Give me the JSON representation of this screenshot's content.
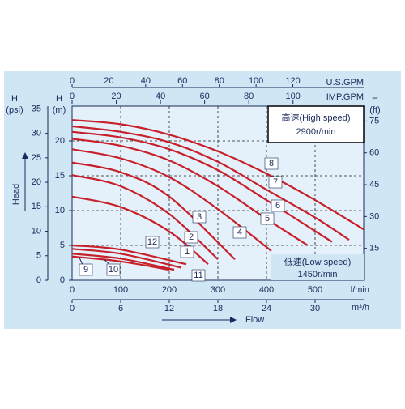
{
  "chart_data": {
    "type": "line",
    "xlabel": "Flow",
    "ylabel": "Head",
    "xlim": [
      0,
      600
    ],
    "xticks": [
      0,
      100,
      200,
      300,
      400,
      500
    ],
    "xunit": "l/min",
    "ylim": [
      0,
      25
    ],
    "yticks": [
      0,
      5,
      10,
      15,
      20
    ],
    "ytitle": "H",
    "yunit": "(m)",
    "y2lim": [
      0,
      82.02
    ],
    "y2ticks": [
      15,
      30,
      45,
      60,
      75
    ],
    "y2title": "H",
    "y2unit": "(ft)",
    "psi_axis": {
      "title": "H",
      "unit": "(psi)",
      "lim": [
        0,
        35.56
      ],
      "ticks": [
        0,
        5,
        10,
        15,
        20,
        25,
        30,
        35
      ]
    },
    "usgpm_axis": {
      "label": "U.S.GPM",
      "lim": [
        0,
        158.5
      ],
      "ticks": [
        0,
        20,
        40,
        60,
        80,
        100,
        120
      ]
    },
    "impgpm_axis": {
      "label": "IMP.GPM",
      "lim": [
        0,
        132
      ],
      "ticks": [
        0,
        20,
        40,
        60,
        80,
        100
      ]
    },
    "m3h_axis": {
      "label": "m³/h",
      "lim": [
        0,
        36
      ],
      "ticks": [
        0,
        6,
        12,
        18,
        24,
        30
      ]
    },
    "high_speed": {
      "label": "高速(High speed)",
      "rpm": "2900r/min"
    },
    "low_speed": {
      "label": "低速(Low speed)",
      "rpm": "1450r/min"
    },
    "series": [
      {
        "name": "1",
        "color": "#c8202a",
        "x": [
          0,
          100,
          200,
          280
        ],
        "values": [
          12,
          10.5,
          7,
          2.3
        ]
      },
      {
        "name": "2",
        "color": "#c8202a",
        "x": [
          0,
          100,
          200,
          300
        ],
        "values": [
          15.1,
          13.5,
          9.5,
          3
        ]
      },
      {
        "name": "3",
        "color": "#c8202a",
        "x": [
          0,
          100,
          200,
          335
        ],
        "values": [
          16.9,
          15.5,
          12,
          3
        ]
      },
      {
        "name": "4",
        "color": "#c8202a",
        "x": [
          0,
          100,
          200,
          300,
          410
        ],
        "values": [
          18.8,
          17.5,
          14.8,
          10.2,
          4.2
        ]
      },
      {
        "name": "5",
        "color": "#c8202a",
        "x": [
          0,
          100,
          200,
          300,
          400,
          485
        ],
        "values": [
          20.3,
          19.3,
          17.2,
          13.5,
          8.8,
          5
        ]
      },
      {
        "name": "6",
        "color": "#c8202a",
        "x": [
          0,
          100,
          200,
          300,
          400,
          535
        ],
        "values": [
          21.3,
          20.5,
          18.8,
          15.8,
          11.5,
          5.5
        ]
      },
      {
        "name": "7",
        "color": "#c8202a",
        "x": [
          0,
          100,
          200,
          300,
          400,
          500,
          570
        ],
        "values": [
          22.1,
          21.3,
          19.8,
          17,
          13,
          9,
          5.8
        ]
      },
      {
        "name": "8",
        "color": "#c8202a",
        "x": [
          0,
          100,
          200,
          300,
          400,
          500,
          600
        ],
        "values": [
          23,
          22.4,
          20.9,
          18.5,
          15.3,
          11.5,
          7.3
        ]
      },
      {
        "name": "9",
        "color": "#c8202a",
        "x": [
          0,
          100,
          200
        ],
        "values": [
          3.4,
          2.7,
          1.5
        ]
      },
      {
        "name": "10",
        "color": "#c8202a",
        "x": [
          0,
          100,
          210
        ],
        "values": [
          3.8,
          3.1,
          1.5
        ]
      },
      {
        "name": "11",
        "color": "#c8202a",
        "x": [
          0,
          100,
          225
        ],
        "values": [
          4.5,
          3.8,
          1.8
        ]
      },
      {
        "name": "12",
        "color": "#c8202a",
        "x": [
          0,
          100,
          235
        ],
        "values": [
          5,
          4.4,
          2.3
        ]
      }
    ]
  }
}
